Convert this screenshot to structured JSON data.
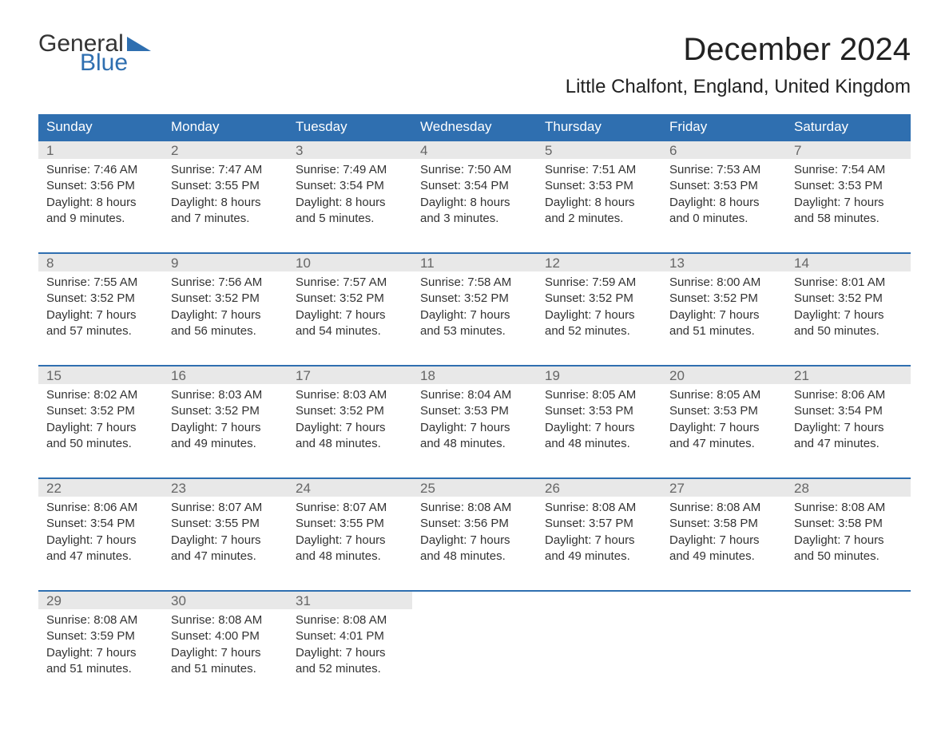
{
  "logo": {
    "word1": "General",
    "word2": "Blue",
    "word1_color": "#333333",
    "word2_color": "#2f6fb0",
    "triangle_color": "#2f6fb0"
  },
  "title": "December 2024",
  "location": "Little Chalfont, England, United Kingdom",
  "colors": {
    "header_bg": "#2f6fb0",
    "header_text": "#ffffff",
    "daynum_bg": "#e8e8e8",
    "daynum_text": "#666666",
    "body_text": "#333333",
    "row_border": "#2f6fb0",
    "page_bg": "#ffffff"
  },
  "dow": [
    "Sunday",
    "Monday",
    "Tuesday",
    "Wednesday",
    "Thursday",
    "Friday",
    "Saturday"
  ],
  "labels": {
    "sunrise": "Sunrise:",
    "sunset": "Sunset:",
    "daylight": "Daylight:"
  },
  "weeks": [
    [
      {
        "day": 1,
        "sunrise": "7:46 AM",
        "sunset": "3:56 PM",
        "dl_h": 8,
        "dl_m": 9
      },
      {
        "day": 2,
        "sunrise": "7:47 AM",
        "sunset": "3:55 PM",
        "dl_h": 8,
        "dl_m": 7
      },
      {
        "day": 3,
        "sunrise": "7:49 AM",
        "sunset": "3:54 PM",
        "dl_h": 8,
        "dl_m": 5
      },
      {
        "day": 4,
        "sunrise": "7:50 AM",
        "sunset": "3:54 PM",
        "dl_h": 8,
        "dl_m": 3
      },
      {
        "day": 5,
        "sunrise": "7:51 AM",
        "sunset": "3:53 PM",
        "dl_h": 8,
        "dl_m": 2
      },
      {
        "day": 6,
        "sunrise": "7:53 AM",
        "sunset": "3:53 PM",
        "dl_h": 8,
        "dl_m": 0
      },
      {
        "day": 7,
        "sunrise": "7:54 AM",
        "sunset": "3:53 PM",
        "dl_h": 7,
        "dl_m": 58
      }
    ],
    [
      {
        "day": 8,
        "sunrise": "7:55 AM",
        "sunset": "3:52 PM",
        "dl_h": 7,
        "dl_m": 57
      },
      {
        "day": 9,
        "sunrise": "7:56 AM",
        "sunset": "3:52 PM",
        "dl_h": 7,
        "dl_m": 56
      },
      {
        "day": 10,
        "sunrise": "7:57 AM",
        "sunset": "3:52 PM",
        "dl_h": 7,
        "dl_m": 54
      },
      {
        "day": 11,
        "sunrise": "7:58 AM",
        "sunset": "3:52 PM",
        "dl_h": 7,
        "dl_m": 53
      },
      {
        "day": 12,
        "sunrise": "7:59 AM",
        "sunset": "3:52 PM",
        "dl_h": 7,
        "dl_m": 52
      },
      {
        "day": 13,
        "sunrise": "8:00 AM",
        "sunset": "3:52 PM",
        "dl_h": 7,
        "dl_m": 51
      },
      {
        "day": 14,
        "sunrise": "8:01 AM",
        "sunset": "3:52 PM",
        "dl_h": 7,
        "dl_m": 50
      }
    ],
    [
      {
        "day": 15,
        "sunrise": "8:02 AM",
        "sunset": "3:52 PM",
        "dl_h": 7,
        "dl_m": 50
      },
      {
        "day": 16,
        "sunrise": "8:03 AM",
        "sunset": "3:52 PM",
        "dl_h": 7,
        "dl_m": 49
      },
      {
        "day": 17,
        "sunrise": "8:03 AM",
        "sunset": "3:52 PM",
        "dl_h": 7,
        "dl_m": 48
      },
      {
        "day": 18,
        "sunrise": "8:04 AM",
        "sunset": "3:53 PM",
        "dl_h": 7,
        "dl_m": 48
      },
      {
        "day": 19,
        "sunrise": "8:05 AM",
        "sunset": "3:53 PM",
        "dl_h": 7,
        "dl_m": 48
      },
      {
        "day": 20,
        "sunrise": "8:05 AM",
        "sunset": "3:53 PM",
        "dl_h": 7,
        "dl_m": 47
      },
      {
        "day": 21,
        "sunrise": "8:06 AM",
        "sunset": "3:54 PM",
        "dl_h": 7,
        "dl_m": 47
      }
    ],
    [
      {
        "day": 22,
        "sunrise": "8:06 AM",
        "sunset": "3:54 PM",
        "dl_h": 7,
        "dl_m": 47
      },
      {
        "day": 23,
        "sunrise": "8:07 AM",
        "sunset": "3:55 PM",
        "dl_h": 7,
        "dl_m": 47
      },
      {
        "day": 24,
        "sunrise": "8:07 AM",
        "sunset": "3:55 PM",
        "dl_h": 7,
        "dl_m": 48
      },
      {
        "day": 25,
        "sunrise": "8:08 AM",
        "sunset": "3:56 PM",
        "dl_h": 7,
        "dl_m": 48
      },
      {
        "day": 26,
        "sunrise": "8:08 AM",
        "sunset": "3:57 PM",
        "dl_h": 7,
        "dl_m": 49
      },
      {
        "day": 27,
        "sunrise": "8:08 AM",
        "sunset": "3:58 PM",
        "dl_h": 7,
        "dl_m": 49
      },
      {
        "day": 28,
        "sunrise": "8:08 AM",
        "sunset": "3:58 PM",
        "dl_h": 7,
        "dl_m": 50
      }
    ],
    [
      {
        "day": 29,
        "sunrise": "8:08 AM",
        "sunset": "3:59 PM",
        "dl_h": 7,
        "dl_m": 51
      },
      {
        "day": 30,
        "sunrise": "8:08 AM",
        "sunset": "4:00 PM",
        "dl_h": 7,
        "dl_m": 51
      },
      {
        "day": 31,
        "sunrise": "8:08 AM",
        "sunset": "4:01 PM",
        "dl_h": 7,
        "dl_m": 52
      },
      null,
      null,
      null,
      null
    ]
  ]
}
